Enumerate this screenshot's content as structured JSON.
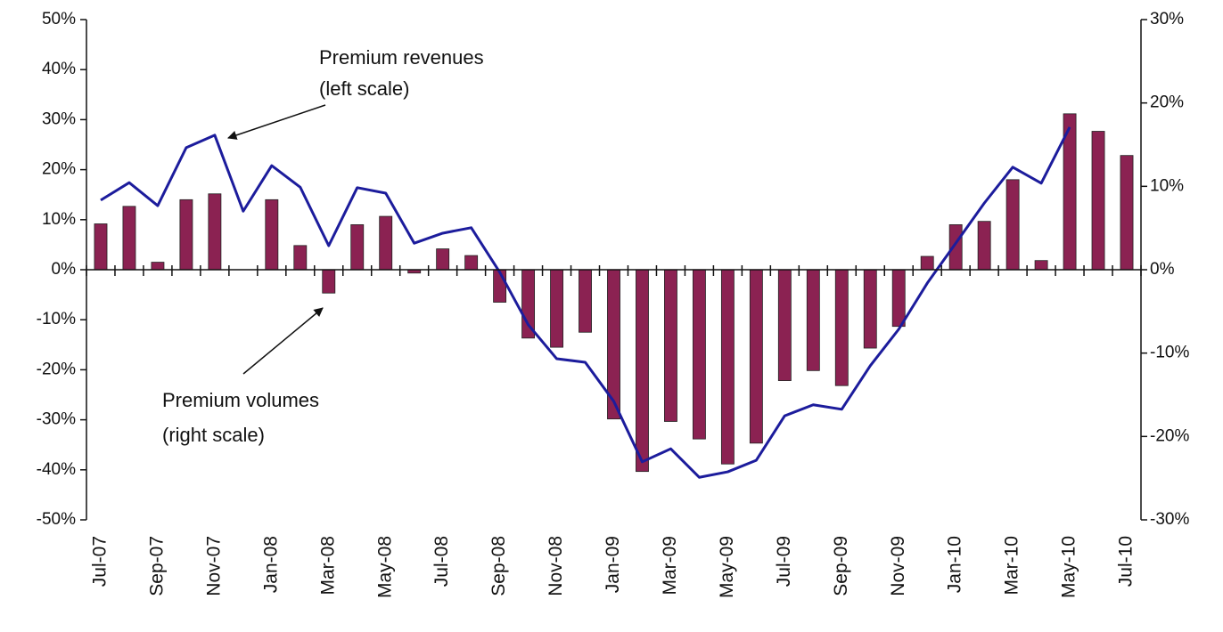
{
  "chart_data": {
    "type": "combo",
    "categories": [
      "Jul-07",
      null,
      "Sep-07",
      null,
      "Nov-07",
      null,
      "Jan-08",
      null,
      "Mar-08",
      null,
      "May-08",
      null,
      "Jul-08",
      null,
      "Sep-08",
      null,
      "Nov-08",
      null,
      "Jan-09",
      null,
      "Mar-09",
      null,
      "May-09",
      null,
      "Jul-09",
      null,
      "Sep-09",
      null,
      "Nov-09",
      null,
      "Jan-10",
      null,
      "Mar-10",
      null,
      "May-10",
      null,
      "Jul-10"
    ],
    "series": [
      {
        "name": "Premium revenues",
        "type": "line",
        "axis": "y",
        "color": "#1c1c9c",
        "values": [
          13.9,
          17.4,
          12.8,
          24.4,
          26.9,
          11.7,
          20.8,
          16.5,
          4.8,
          16.4,
          15.3,
          5.3,
          7.3,
          8.4,
          -0.5,
          -11,
          -17.8,
          -18.5,
          -26.3,
          -38.4,
          -35.8,
          -41.5,
          -40.4,
          -38.1,
          -29.2,
          -27.0,
          -27.9,
          -19.2,
          -11.9,
          -2.7,
          5.3,
          13.3,
          20.5,
          17.3,
          28.5,
          null,
          null
        ]
      },
      {
        "name": "Premium volumes",
        "type": "bar",
        "axis": "y2",
        "color": "#8b2252",
        "values": [
          5.5,
          7.6,
          0.9,
          8.4,
          9.1,
          0,
          8.4,
          2.9,
          -2.8,
          5.4,
          6.4,
          -0.4,
          2.5,
          1.7,
          -3.9,
          -8.2,
          -9.3,
          -7.5,
          -17.9,
          -24.2,
          -18.2,
          -20.3,
          -23.3,
          -20.8,
          -13.3,
          -12.1,
          -13.9,
          -9.4,
          -6.8,
          1.6,
          5.4,
          5.8,
          10.8,
          1.1,
          18.7,
          16.6,
          13.7
        ]
      }
    ],
    "annotations": [
      "(left scale)",
      "(right scale)"
    ],
    "ylim": [
      -50,
      50
    ],
    "yticks": [
      {
        "value": -50,
        "label": "-50%"
      },
      {
        "value": -40,
        "label": "-40%"
      },
      {
        "value": -30,
        "label": "-30%"
      },
      {
        "value": -20,
        "label": "-20%"
      },
      {
        "value": -10,
        "label": "-10%"
      },
      {
        "value": 0,
        "label": "0%"
      },
      {
        "value": 10,
        "label": "10%"
      },
      {
        "value": 20,
        "label": "20%"
      },
      {
        "value": 30,
        "label": "30%"
      },
      {
        "value": 40,
        "label": "40%"
      },
      {
        "value": 50,
        "label": "50%"
      }
    ],
    "y2lim": [
      -30,
      30
    ],
    "y2ticks": [
      {
        "value": -30,
        "label": "-30%"
      },
      {
        "value": -20,
        "label": "-20%"
      },
      {
        "value": -10,
        "label": "-10%"
      },
      {
        "value": 0,
        "label": "0%"
      },
      {
        "value": 10,
        "label": "10%"
      },
      {
        "value": 20,
        "label": "20%"
      },
      {
        "value": 30,
        "label": "30%"
      }
    ],
    "grid": false
  }
}
